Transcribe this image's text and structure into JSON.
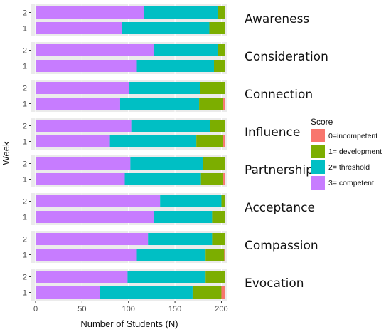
{
  "chart_data": {
    "type": "bar",
    "orientation": "horizontal",
    "stacked": true,
    "grid": true,
    "xlabel": "Number of Students (N)",
    "ylabel": "Week",
    "xlim": [
      0,
      205
    ],
    "xticks": [
      0,
      50,
      100,
      150,
      200
    ],
    "weeks": [
      "2",
      "1"
    ],
    "legend": {
      "title": "Score",
      "position": "right",
      "entries": [
        {
          "key": "s0",
          "label": "0=incompetent",
          "color": "#f8766d"
        },
        {
          "key": "s1",
          "label": "1= development",
          "color": "#7cae00"
        },
        {
          "key": "s2",
          "label": "2= threshold",
          "color": "#00bfc4"
        },
        {
          "key": "s3",
          "label": "3= competent",
          "color": "#c77cff"
        }
      ]
    },
    "stack_order": [
      "s3",
      "s2",
      "s1",
      "s0"
    ],
    "facets": [
      {
        "name": "Awareness",
        "bars": [
          {
            "week": "2",
            "s3": 117,
            "s2": 79,
            "s1": 8,
            "s0": 0
          },
          {
            "week": "1",
            "s3": 93,
            "s2": 94,
            "s1": 17,
            "s0": 0
          }
        ]
      },
      {
        "name": "Consideration",
        "bars": [
          {
            "week": "2",
            "s3": 127,
            "s2": 69,
            "s1": 8,
            "s0": 0
          },
          {
            "week": "1",
            "s3": 109,
            "s2": 83,
            "s1": 12,
            "s0": 0
          }
        ]
      },
      {
        "name": "Connection",
        "bars": [
          {
            "week": "2",
            "s3": 101,
            "s2": 76,
            "s1": 27,
            "s0": 0
          },
          {
            "week": "1",
            "s3": 91,
            "s2": 85,
            "s1": 26,
            "s0": 2
          }
        ]
      },
      {
        "name": "Influence",
        "bars": [
          {
            "week": "2",
            "s3": 103,
            "s2": 85,
            "s1": 16,
            "s0": 0
          },
          {
            "week": "1",
            "s3": 80,
            "s2": 93,
            "s1": 29,
            "s0": 2
          }
        ]
      },
      {
        "name": "Partnership",
        "bars": [
          {
            "week": "2",
            "s3": 102,
            "s2": 78,
            "s1": 24,
            "s0": 0
          },
          {
            "week": "1",
            "s3": 96,
            "s2": 82,
            "s1": 24,
            "s0": 2
          }
        ]
      },
      {
        "name": "Acceptance",
        "bars": [
          {
            "week": "2",
            "s3": 134,
            "s2": 66,
            "s1": 4,
            "s0": 0
          },
          {
            "week": "1",
            "s3": 127,
            "s2": 63,
            "s1": 14,
            "s0": 0
          }
        ]
      },
      {
        "name": "Compassion",
        "bars": [
          {
            "week": "2",
            "s3": 121,
            "s2": 69,
            "s1": 14,
            "s0": 0
          },
          {
            "week": "1",
            "s3": 109,
            "s2": 74,
            "s1": 20,
            "s0": 1
          }
        ]
      },
      {
        "name": "Evocation",
        "bars": [
          {
            "week": "2",
            "s3": 99,
            "s2": 84,
            "s1": 21,
            "s0": 0
          },
          {
            "week": "1",
            "s3": 69,
            "s2": 100,
            "s1": 31,
            "s0": 4
          }
        ]
      }
    ]
  }
}
